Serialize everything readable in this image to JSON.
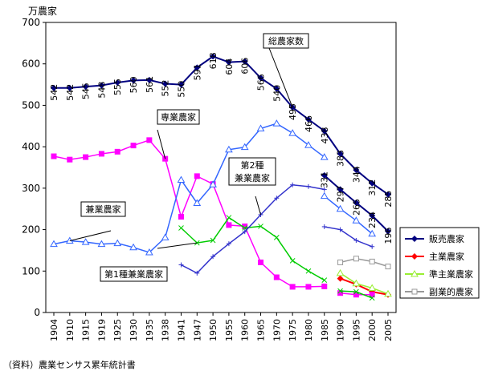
{
  "chart_data": {
    "type": "line",
    "title": "",
    "ylabel": "万農家",
    "xlabel": "",
    "ylim": [
      0,
      700
    ],
    "yticks": [
      0,
      100,
      200,
      300,
      400,
      500,
      600,
      700
    ],
    "categories": [
      "1904",
      "1910",
      "1915",
      "1919",
      "1925",
      "1930",
      "1935",
      "1938",
      "1941",
      "1947",
      "1950",
      "1955",
      "1960",
      "1965",
      "1970",
      "1975",
      "1980",
      "1985",
      "1990",
      "1995",
      "2000",
      "2005"
    ],
    "series": [
      {
        "key": "total",
        "name": "総農家数",
        "color": "#000080",
        "marker": "diamond",
        "labels": true,
        "values": [
          542,
          542,
          545,
          548,
          555,
          560,
          561,
          552,
          550,
          591,
          618,
          604,
          606,
          566,
          540,
          495,
          466,
          438,
          383,
          344,
          312,
          285
        ]
      },
      {
        "key": "full",
        "name": "専業農家",
        "color": "#ff00ff",
        "marker": "square",
        "values": [
          377,
          369,
          375,
          383,
          388,
          403,
          416,
          371,
          231,
          329,
          310,
          211,
          208,
          121,
          85,
          62,
          62,
          63,
          null,
          null,
          null,
          null
        ]
      },
      {
        "key": "part",
        "name": "兼業農家",
        "color": "#3366ff",
        "marker": "triangle",
        "values": [
          165,
          173,
          170,
          165,
          167,
          157,
          145,
          181,
          320,
          264,
          309,
          393,
          399,
          444,
          456,
          433,
          404,
          375,
          null,
          null,
          null,
          null
        ]
      },
      {
        "key": "part1",
        "name": "第1種兼業農家",
        "color": "#00cc00",
        "marker": "x",
        "values": [
          null,
          null,
          null,
          null,
          null,
          null,
          null,
          null,
          204,
          168,
          174,
          229,
          204,
          208,
          181,
          125,
          100,
          78,
          null,
          null,
          null,
          null
        ]
      },
      {
        "key": "part2",
        "name": "第2種兼業農家",
        "color": "#3333cc",
        "marker": "plus",
        "values": [
          null,
          null,
          null,
          null,
          null,
          null,
          null,
          null,
          115,
          95,
          135,
          166,
          195,
          236,
          276,
          308,
          304,
          297,
          null,
          null,
          null,
          null
        ]
      },
      {
        "key": "hanbai",
        "name": "販売農家",
        "color": "#000080",
        "marker": "diamond",
        "labels": true,
        "values": [
          null,
          null,
          null,
          null,
          null,
          null,
          null,
          null,
          null,
          null,
          null,
          null,
          null,
          null,
          null,
          null,
          null,
          331,
          297,
          265,
          234,
          196
        ]
      },
      {
        "key": "hanbai_part",
        "name": "",
        "color": "#3366ff",
        "marker": "triangle",
        "values": [
          null,
          null,
          null,
          null,
          null,
          null,
          null,
          null,
          null,
          null,
          null,
          null,
          null,
          null,
          null,
          null,
          null,
          281,
          250,
          222,
          190,
          null
        ]
      },
      {
        "key": "hanbai_part2",
        "name": "",
        "color": "#3333cc",
        "marker": "plus",
        "values": [
          null,
          null,
          null,
          null,
          null,
          null,
          null,
          null,
          null,
          null,
          null,
          null,
          null,
          null,
          null,
          null,
          null,
          207,
          200,
          174,
          159,
          null
        ]
      },
      {
        "key": "shugyo",
        "name": "主業農家",
        "color": "#ff0000",
        "marker": "diamond",
        "values": [
          null,
          null,
          null,
          null,
          null,
          null,
          null,
          null,
          null,
          null,
          null,
          null,
          null,
          null,
          null,
          null,
          null,
          null,
          82,
          68,
          50,
          43
        ]
      },
      {
        "key": "junshugyo",
        "name": "準主業農家",
        "color": "#99ee33",
        "marker": "triangle",
        "values": [
          null,
          null,
          null,
          null,
          null,
          null,
          null,
          null,
          null,
          null,
          null,
          null,
          null,
          null,
          null,
          null,
          null,
          null,
          95,
          70,
          59,
          45
        ]
      },
      {
        "key": "fukugyo",
        "name": "副業的農家",
        "color": "#999999",
        "marker": "square",
        "values": [
          null,
          null,
          null,
          null,
          null,
          null,
          null,
          null,
          null,
          null,
          null,
          null,
          null,
          null,
          null,
          null,
          null,
          null,
          121,
          130,
          123,
          111
        ]
      },
      {
        "key": "old_full",
        "name": "",
        "color": "#ff00ff",
        "marker": "square",
        "values": [
          null,
          null,
          null,
          null,
          null,
          null,
          null,
          null,
          null,
          null,
          null,
          null,
          null,
          null,
          null,
          null,
          null,
          null,
          47,
          43,
          43,
          null
        ]
      },
      {
        "key": "old_part1",
        "name": "",
        "color": "#00cc00",
        "marker": "x",
        "values": [
          null,
          null,
          null,
          null,
          null,
          null,
          null,
          null,
          null,
          null,
          null,
          null,
          null,
          null,
          null,
          null,
          null,
          null,
          52,
          50,
          35,
          null
        ]
      }
    ],
    "legend": [
      "hanbai",
      "shugyo",
      "junshugyo",
      "fukugyo"
    ],
    "legend_position": "right",
    "callouts": [
      {
        "key": "total",
        "text": "総農家数"
      },
      {
        "key": "full",
        "text": "専業農家"
      },
      {
        "key": "part",
        "text": "兼業農家"
      },
      {
        "key": "part2",
        "text": "第2種\n兼業農家"
      },
      {
        "key": "part1",
        "text": "第1種兼業農家"
      }
    ]
  },
  "source_note": "（資料）農業センサス累年統計書"
}
